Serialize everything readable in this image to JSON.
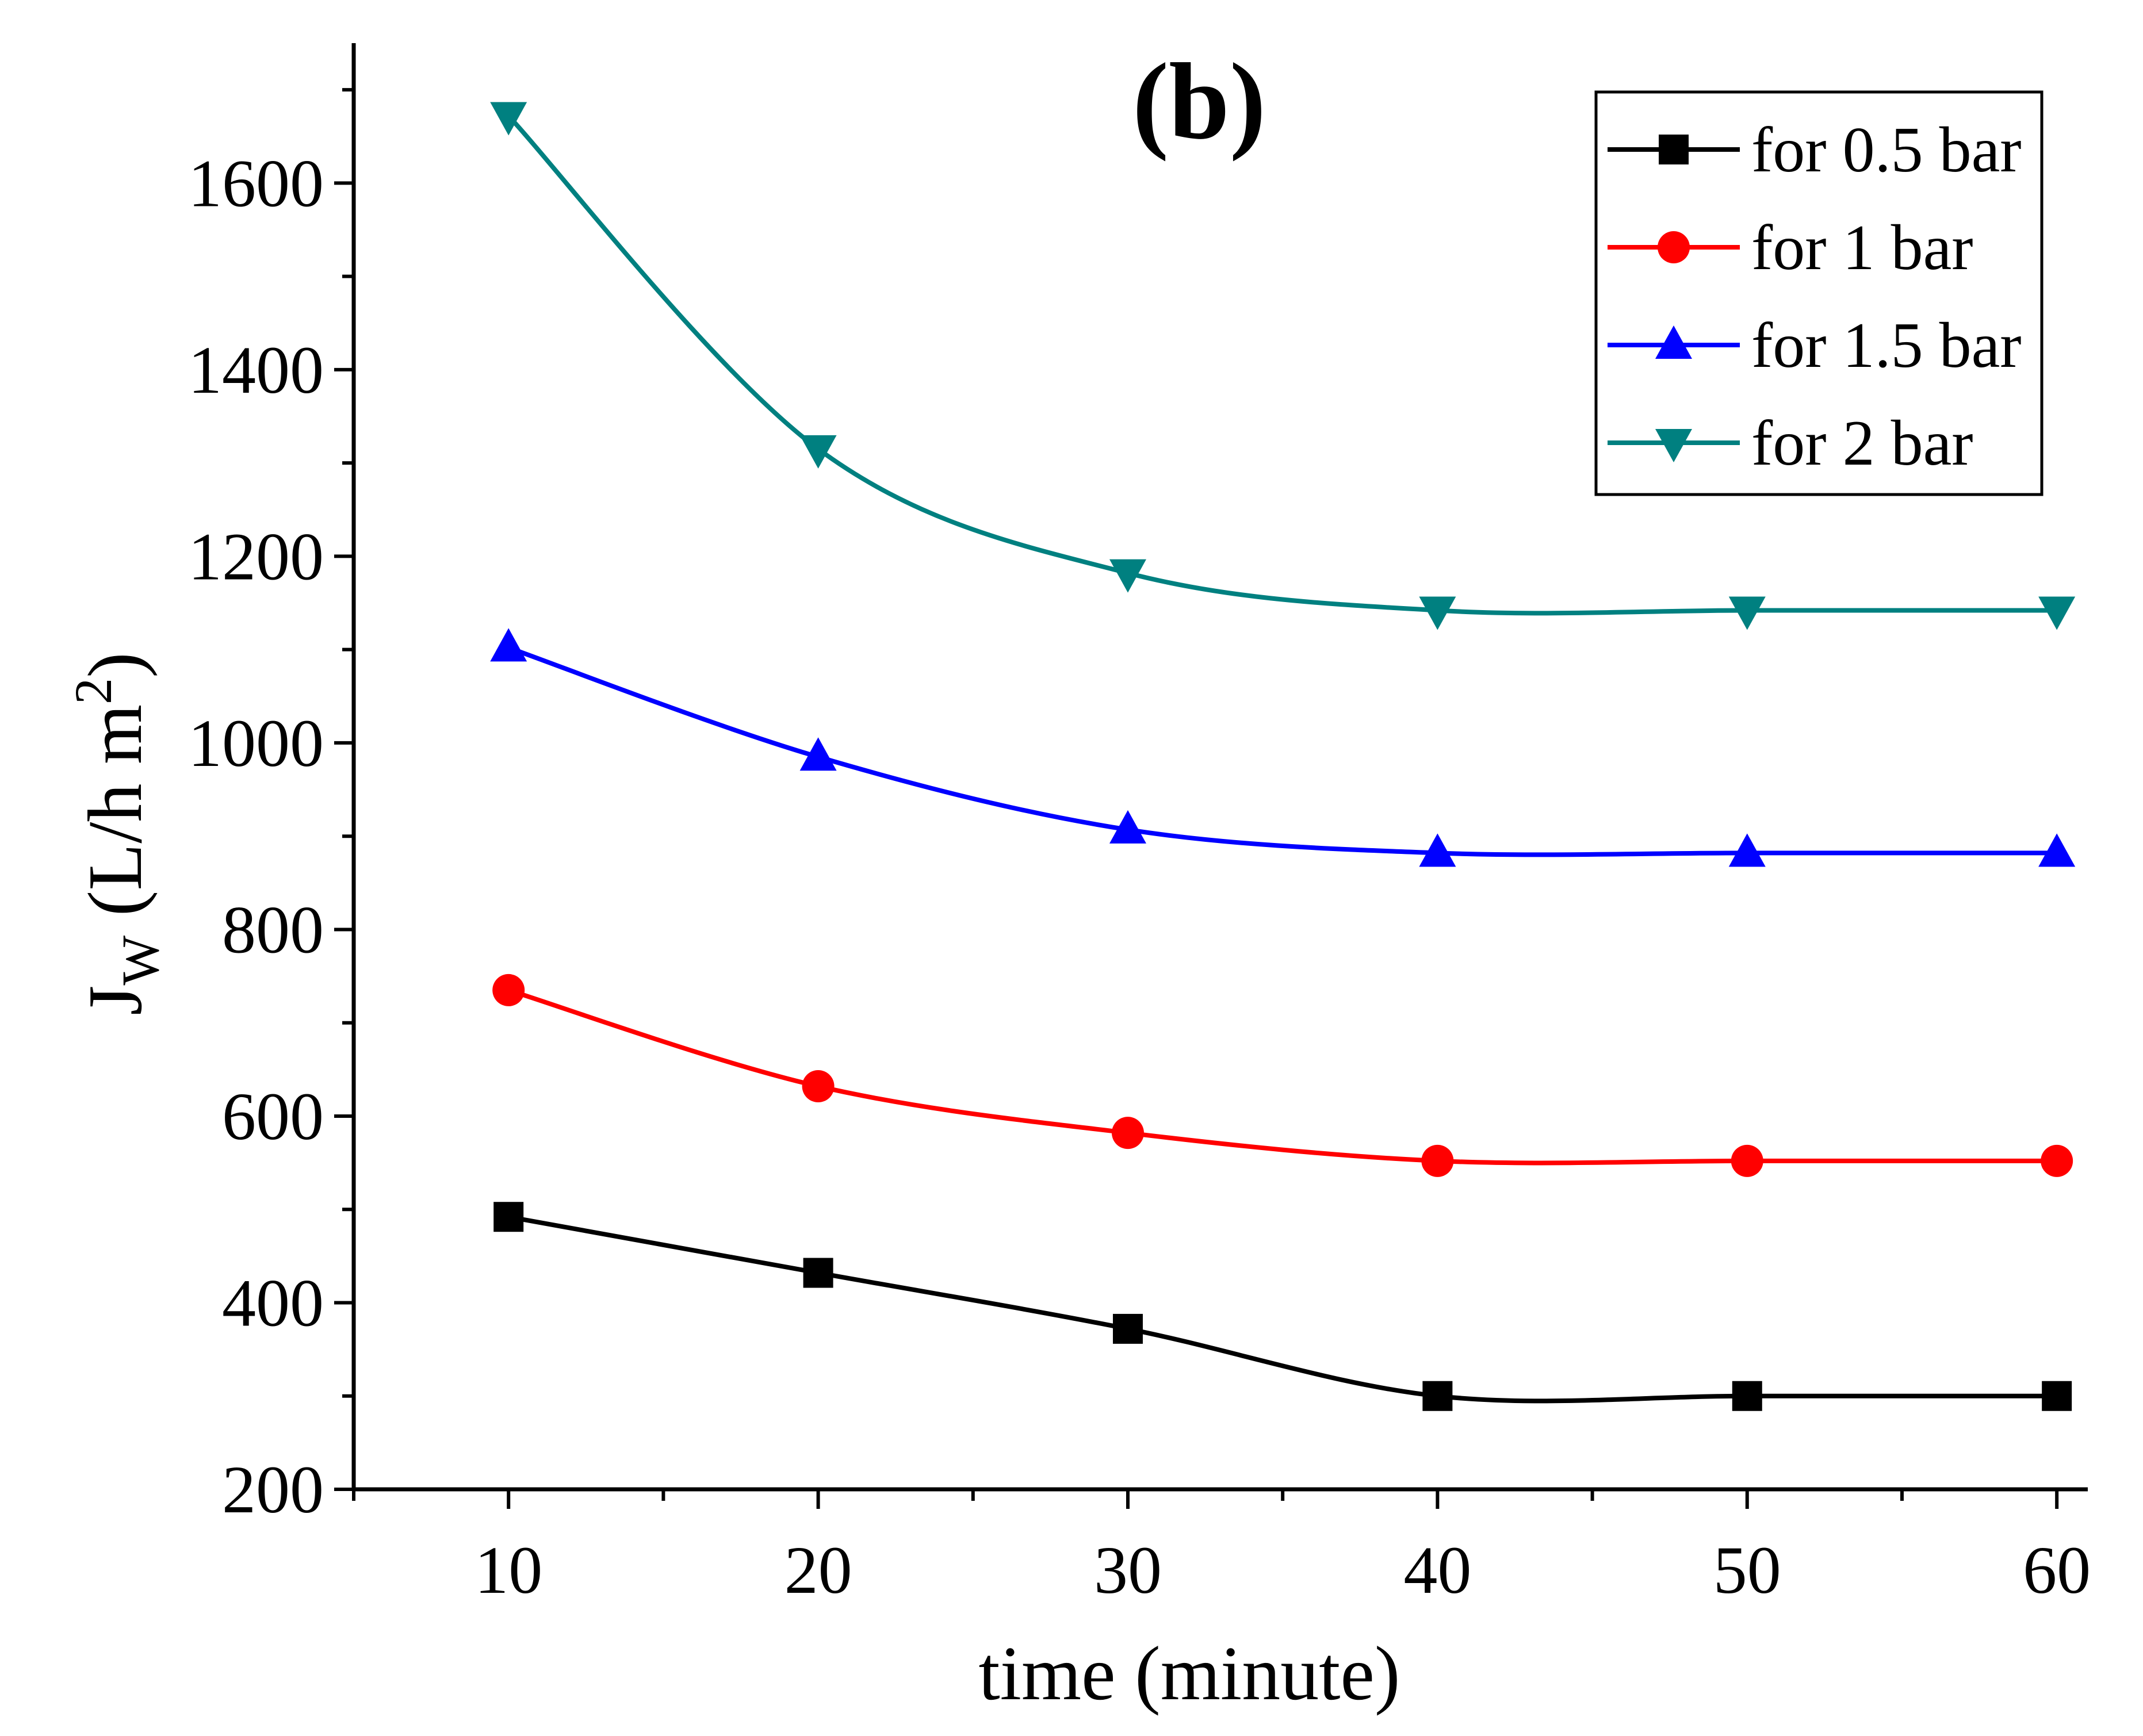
{
  "chart_data": {
    "type": "line",
    "title": "(b)",
    "xlabel": "time (minute)",
    "ylabel": "J",
    "ylabel_sub": "W",
    "ylabel_unit": " (L/h m",
    "ylabel_sup": "2",
    "ylabel_close": ")",
    "x": [
      10,
      20,
      30,
      40,
      50,
      60
    ],
    "xlim": [
      5,
      61
    ],
    "ylim": [
      200,
      1750
    ],
    "xticks": [
      10,
      20,
      30,
      40,
      50,
      60
    ],
    "yticks": [
      200,
      400,
      600,
      800,
      1000,
      1200,
      1400,
      1600
    ],
    "legend_position": "top-right",
    "series": [
      {
        "name": "for 0.5 bar",
        "marker": "square",
        "color": "#000000",
        "values": [
          492,
          432,
          372,
          300,
          300,
          300
        ]
      },
      {
        "name": "for 1 bar",
        "marker": "circle",
        "color": "#ff0000",
        "values": [
          735,
          632,
          582,
          552,
          552,
          552
        ]
      },
      {
        "name": "for 1.5 bar",
        "marker": "triangle-up",
        "color": "#0000ff",
        "values": [
          1102,
          985,
          907,
          882,
          882,
          882
        ]
      },
      {
        "name": "for 2 bar",
        "marker": "triangle-down",
        "color": "#008080",
        "values": [
          1672,
          1315,
          1182,
          1142,
          1142,
          1142
        ]
      }
    ]
  }
}
